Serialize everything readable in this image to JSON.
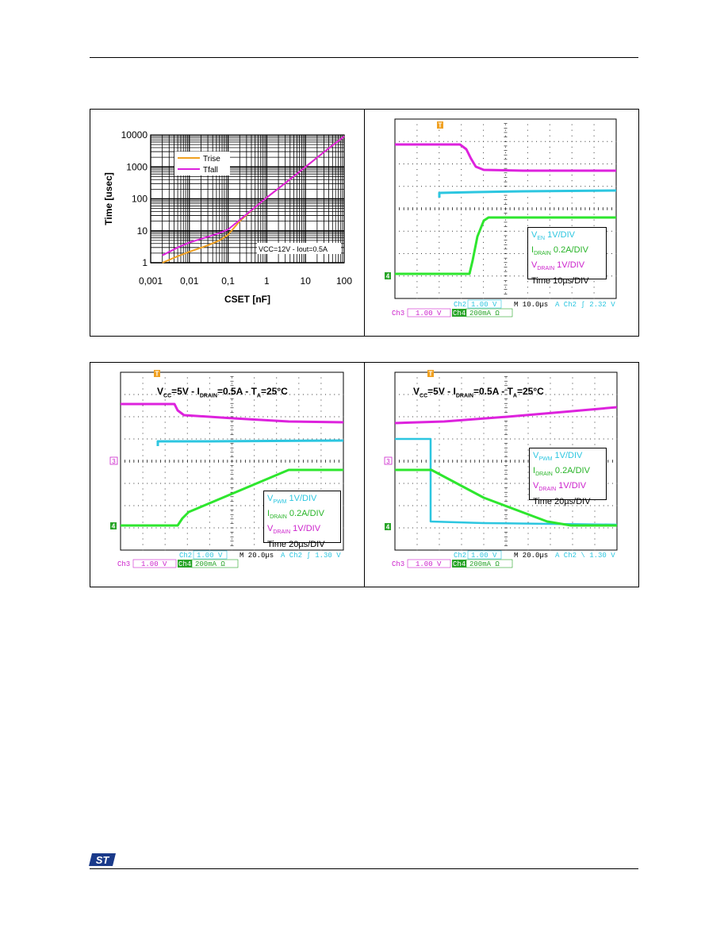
{
  "colors": {
    "cyan": "#2cc6e0",
    "green": "#2ee62e",
    "magenta": "#dd22dd",
    "orange": "#f0a020",
    "grid": "#222222"
  },
  "chart_data": [
    {
      "type": "line",
      "xlabel": "CSET [nF]",
      "ylabel": "Time [usec]",
      "x_scale": "log",
      "y_scale": "log",
      "xlim": [
        0.001,
        100
      ],
      "ylim": [
        1,
        10000
      ],
      "x_ticks": [
        "0,001",
        "0,01",
        "0,1",
        "1",
        "10",
        "100"
      ],
      "y_ticks": [
        "1",
        "10",
        "100",
        "1000",
        "10000"
      ],
      "annotation": "VCC=12V - Iout=0.5A",
      "series": [
        {
          "name": "Trise",
          "color": "#f0a020",
          "x": [
            0.002,
            0.005,
            0.01,
            0.03,
            0.06,
            0.1,
            0.2,
            0.5,
            1,
            3,
            10,
            30,
            100
          ],
          "y": [
            1,
            1.6,
            2.2,
            3.5,
            5,
            7.5,
            20,
            55,
            110,
            310,
            1000,
            2900,
            9000
          ]
        },
        {
          "name": "Tfall",
          "color": "#dd22dd",
          "x": [
            0.002,
            0.005,
            0.01,
            0.03,
            0.06,
            0.1,
            0.2,
            0.5,
            1,
            3,
            10,
            30,
            100
          ],
          "y": [
            1.7,
            3,
            4.3,
            6.5,
            8.5,
            11,
            22,
            55,
            110,
            310,
            1000,
            2900,
            9000
          ]
        }
      ]
    }
  ],
  "scope1": {
    "legend": {
      "l1_main": "V",
      "l1_sub": "EN",
      "l1_rest": " 1V/DIV",
      "l2_main": "I",
      "l2_sub": "DRAIN",
      "l2_rest": " 0.2A/DIV",
      "l3_main": "V",
      "l3_sub": "DRAIN",
      "l3_rest": " 1V/DIV",
      "l4": "Time 10µs/DIV"
    },
    "readout": {
      "ch2": "Ch2",
      "ch2_val": "1.00 V",
      "timebase": "M 10.0µs",
      "trig": "A  Ch2  ʃ   2.32 V",
      "ch3": "Ch3",
      "ch3_val": "1.00 V",
      "ch4": "Ch4",
      "ch4_val": "200mA Ω"
    },
    "markers": {
      "trigger": "T",
      "ch4": "4"
    }
  },
  "scope2": {
    "condition": {
      "a": "V",
      "a_sub": "CC",
      "b": "=5V - I",
      "b_sub": "DRAIN",
      "c": "=0.5A - T",
      "c_sub": "A",
      "d": "=25°C"
    },
    "legend": {
      "l1_main": "V",
      "l1_sub": "PWM",
      "l1_rest": " 1V/DIV",
      "l2_main": "I",
      "l2_sub": "DRAIN",
      "l2_rest": " 0.2A/DIV",
      "l3_main": "V",
      "l3_sub": "DRAIN",
      "l3_rest": " 1V/DIV",
      "l4": "Time 20µs/DIV"
    },
    "readout": {
      "ch2": "Ch2",
      "ch2_val": "1.00 V",
      "timebase": "M 20.0µs",
      "trig": "A  Ch2  ʃ   1.30 V",
      "ch3": "Ch3",
      "ch3_val": "1.00 V",
      "ch4": "Ch4",
      "ch4_val": "200mA Ω"
    },
    "markers": {
      "trigger": "T",
      "ch3": "3",
      "ch4": "4"
    }
  },
  "scope3": {
    "condition": {
      "a": "V",
      "a_sub": "CC",
      "b": "=5V - I",
      "b_sub": "DRAIN",
      "c": "=0.5A - T",
      "c_sub": "A",
      "d": "=25°C"
    },
    "legend": {
      "l1_main": "V",
      "l1_sub": "PWM",
      "l1_rest": " 1V/DIV",
      "l2_main": "I",
      "l2_sub": "DRAIN",
      "l2_rest": " 0.2A/DIV",
      "l3_main": "V",
      "l3_sub": "DRAIN",
      "l3_rest": " 1V/DIV",
      "l4": "Time 20µs/DIV"
    },
    "readout": {
      "ch2": "Ch2",
      "ch2_val": "1.00 V",
      "timebase": "M 20.0µs",
      "trig": "A  Ch2  \\   1.30 V",
      "ch3": "Ch3",
      "ch3_val": "1.00 V",
      "ch4": "Ch4",
      "ch4_val": "200mA Ω"
    },
    "markers": {
      "trigger": "T",
      "ch3": "3",
      "ch4": "4"
    }
  },
  "footer": {
    "logo_text": "ST"
  }
}
